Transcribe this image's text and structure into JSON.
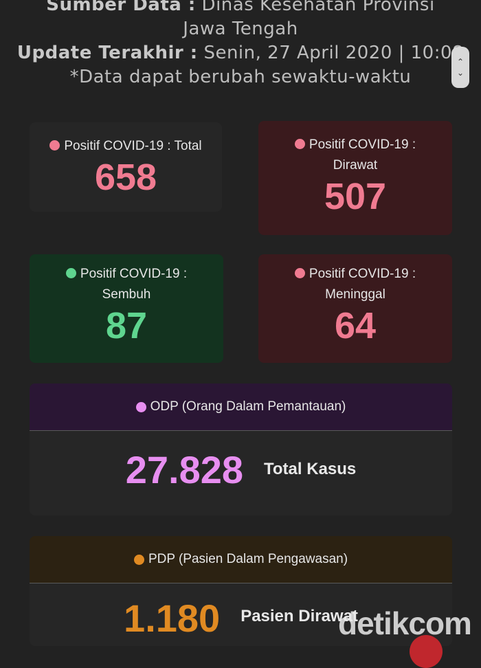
{
  "header": {
    "source_label": "Sumber Data :",
    "source_value_line1": "Dinas Kesehatan Provinsi",
    "source_value_line2": "Jawa Tengah",
    "update_label": "Update Terakhir :",
    "update_value": "Senin, 27 April 2020 | 10:08",
    "note": "*Data dapat berubah sewaktu-waktu"
  },
  "cards": {
    "total": {
      "label": "Positif COVID-19 : Total",
      "value": "658"
    },
    "dirawat": {
      "label_line1": "Positif COVID-19 :",
      "label_line2": "Dirawat",
      "value": "507"
    },
    "sembuh": {
      "label_line1": "Positif COVID-19 :",
      "label_line2": "Sembuh",
      "value": "87"
    },
    "meninggal": {
      "label_line1": "Positif COVID-19 :",
      "label_line2": "Meninggal",
      "value": "64"
    }
  },
  "odp": {
    "title": "ODP (Orang Dalam Pemantauan)",
    "value": "27.828",
    "caption": "Total Kasus"
  },
  "pdp": {
    "title": "PDP (Pasien Dalam Pengawasan)",
    "value": "1.180",
    "caption": "Pasien Dirawat"
  },
  "watermark": "detikcom",
  "colors": {
    "pink": "#f07b91",
    "green": "#5fd58f",
    "violet": "#e78ef0",
    "orange": "#e08a22",
    "card_dark": "#262626",
    "card_red": "#3a1a1d",
    "card_green": "#13331f",
    "band_violet": "#2a1634",
    "band_orange": "#2c2212"
  },
  "icons": {
    "scroll": "scroll-arrows-icon"
  }
}
